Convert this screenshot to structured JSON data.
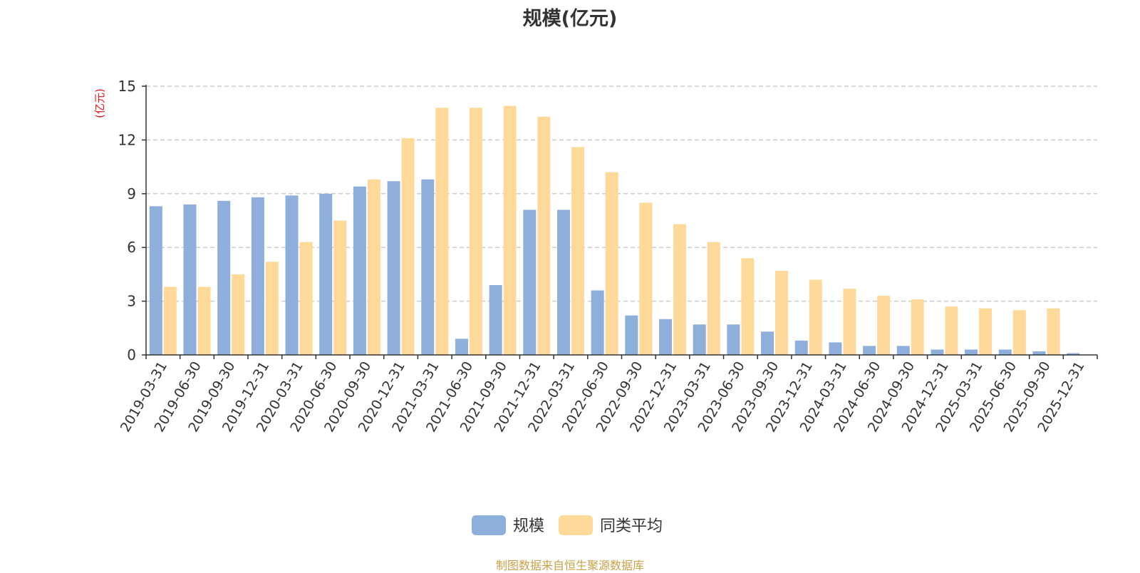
{
  "chart_data": {
    "type": "bar",
    "title": "规模(亿元)",
    "ylabel": "(亿元)",
    "ylim": [
      0,
      15
    ],
    "yticks": [
      "0",
      "3",
      "6",
      "9",
      "12",
      "15"
    ],
    "grid": "horizontal-dashed",
    "legend_position": "bottom",
    "categories": [
      "2019-03-31",
      "2019-06-30",
      "2019-09-30",
      "2019-12-31",
      "2020-03-31",
      "2020-06-30",
      "2020-09-30",
      "2020-12-31",
      "2021-03-31",
      "2021-06-30",
      "2021-09-30",
      "2021-12-31",
      "2022-03-31",
      "2022-06-30",
      "2022-09-30",
      "2022-12-31",
      "2023-03-31",
      "2023-06-30",
      "2023-09-30",
      "2023-12-31",
      "2024-03-31",
      "2024-06-30",
      "2024-09-30",
      "2024-12-31",
      "2025-03-31",
      "2025-06-30",
      "2025-09-30",
      "2025-12-31"
    ],
    "series": [
      {
        "name": "规模",
        "color": "#8eaedb",
        "values": [
          8.3,
          8.4,
          8.6,
          8.8,
          8.9,
          9.0,
          9.4,
          9.7,
          9.8,
          0.9,
          3.9,
          8.1,
          8.1,
          3.6,
          2.2,
          2.0,
          1.7,
          1.7,
          1.3,
          0.8,
          0.7,
          0.5,
          0.5,
          0.3,
          0.3,
          0.3,
          0.2,
          0.1
        ]
      },
      {
        "name": "同类平均",
        "color": "#ffd99a",
        "values": [
          3.8,
          3.8,
          4.5,
          5.2,
          6.3,
          7.5,
          9.8,
          12.1,
          13.8,
          13.8,
          13.9,
          13.3,
          11.6,
          10.2,
          8.5,
          7.3,
          6.3,
          5.4,
          4.7,
          4.2,
          3.7,
          3.3,
          3.1,
          2.7,
          2.6,
          2.5,
          2.6,
          null
        ]
      }
    ]
  },
  "source": "制图数据来自恒生聚源数据库"
}
